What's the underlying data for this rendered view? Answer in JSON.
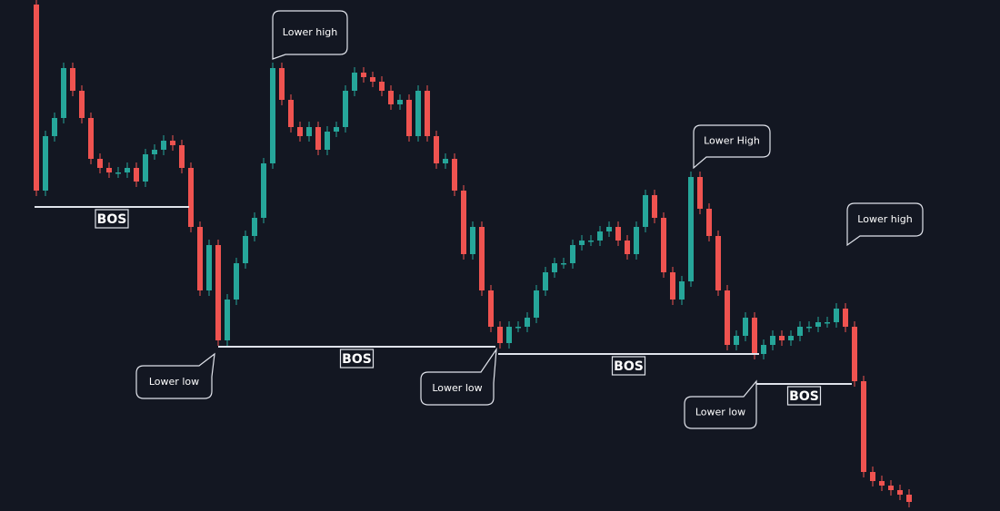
{
  "chart_data": {
    "type": "candlestick",
    "up_color": "#26a69a",
    "down_color": "#ef5350",
    "xlim": [
      0,
      97
    ],
    "ylim": [
      0,
      563
    ],
    "values": [
      558,
      353,
      413,
      433,
      488,
      463,
      433,
      388,
      378,
      373,
      373,
      378,
      363,
      393,
      398,
      408,
      403,
      378,
      313,
      243,
      293,
      188,
      233,
      273,
      303,
      323,
      383,
      488,
      453,
      423,
      413,
      423,
      398,
      418,
      423,
      463,
      483,
      478,
      473,
      463,
      448,
      453,
      413,
      463,
      413,
      383,
      388,
      353,
      283,
      313,
      243,
      203,
      185,
      203,
      203,
      213,
      243,
      263,
      273,
      273,
      293,
      298,
      298,
      308,
      313,
      298,
      283,
      313,
      348,
      323,
      263,
      233,
      253,
      368,
      333,
      303,
      243,
      183,
      193,
      213,
      173,
      183,
      193,
      188,
      193,
      203,
      203,
      208,
      208,
      223,
      203,
      143,
      43,
      33,
      28,
      23,
      18,
      10
    ],
    "levels": [
      {
        "label": "BOS",
        "value": 335,
        "from": 0.8,
        "to": 17.8
      },
      {
        "label": "BOS",
        "value": 181,
        "from": 21,
        "to": 51.5
      },
      {
        "label": "BOS",
        "value": 173,
        "from": 51.8,
        "to": 80.5
      },
      {
        "label": "BOS",
        "value": 140,
        "from": 80.2,
        "to": 90.7
      }
    ],
    "annotations": [
      {
        "text": "Lower high",
        "at": 27
      },
      {
        "text": "Lower low",
        "at": 20.9
      },
      {
        "text": "Lower low",
        "at": 51.5
      },
      {
        "text": "Lower High",
        "at": 73.3
      },
      {
        "text": "Lower high",
        "at": 89.2
      },
      {
        "text": "Lower low",
        "at": 80.3
      }
    ]
  }
}
